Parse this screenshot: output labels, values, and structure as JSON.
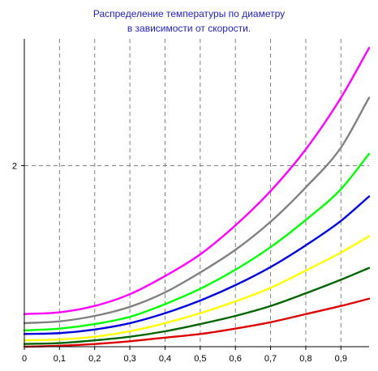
{
  "chart_data": {
    "type": "line",
    "title_lines": [
      "Распределение температуры по диаметру",
      "в зависимости от скорости."
    ],
    "xlabel": "",
    "ylabel": "",
    "xlim": [
      0,
      0.98
    ],
    "ylim": [
      0,
      3.4
    ],
    "x_ticks": [
      "0",
      "0,1",
      "0,2",
      "0,3",
      "0,4",
      "0,5",
      "0,6",
      "0,7",
      "0,8",
      "0,9"
    ],
    "y_ticks": [
      "2"
    ],
    "grid": true,
    "legend": "none",
    "x": [
      0,
      0.1,
      0.2,
      0.3,
      0.4,
      0.5,
      0.6,
      0.7,
      0.8,
      0.9,
      0.98
    ],
    "series": [
      {
        "color": "#ff00ff",
        "values": [
          0.36,
          0.38,
          0.45,
          0.58,
          0.78,
          1.02,
          1.34,
          1.72,
          2.18,
          2.75,
          3.3
        ]
      },
      {
        "color": "#808080",
        "values": [
          0.26,
          0.28,
          0.34,
          0.44,
          0.6,
          0.82,
          1.07,
          1.38,
          1.76,
          2.2,
          2.75
        ]
      },
      {
        "color": "#00ff00",
        "values": [
          0.18,
          0.2,
          0.25,
          0.33,
          0.47,
          0.64,
          0.85,
          1.1,
          1.4,
          1.74,
          2.13
        ]
      },
      {
        "color": "#0000dd",
        "values": [
          0.14,
          0.15,
          0.19,
          0.26,
          0.37,
          0.51,
          0.68,
          0.88,
          1.12,
          1.39,
          1.66
        ]
      },
      {
        "color": "#ffff00",
        "values": [
          0.07,
          0.08,
          0.11,
          0.17,
          0.26,
          0.37,
          0.5,
          0.65,
          0.84,
          1.04,
          1.22
        ]
      },
      {
        "color": "#006400",
        "values": [
          0.03,
          0.04,
          0.07,
          0.11,
          0.17,
          0.25,
          0.34,
          0.45,
          0.59,
          0.74,
          0.87
        ]
      },
      {
        "color": "#dd0000",
        "values": [
          0.0,
          0.01,
          0.03,
          0.06,
          0.1,
          0.14,
          0.2,
          0.27,
          0.36,
          0.45,
          0.53
        ]
      }
    ]
  }
}
